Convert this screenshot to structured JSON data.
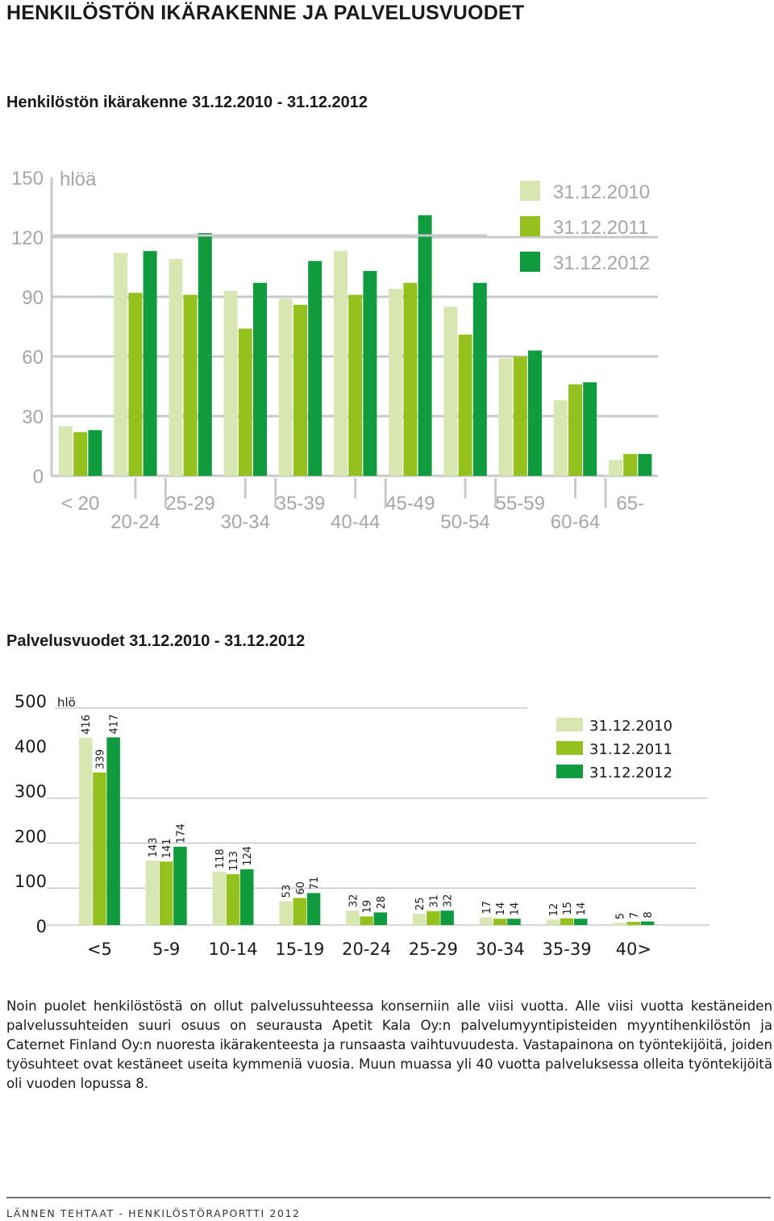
{
  "page": {
    "title": "HENKILÖSTÖN IKÄRAKENNE JA PALVELUSVUODET",
    "footer": "LÄNNEN TEHTAAT - HENKILÖSTÖRAPORTTI 2012",
    "body_text": "Noin puolet henkilöstöstä on ollut palvelussuhteessa konserniin alle viisi vuotta. Alle viisi vuotta kestäneiden palvelussuhteiden suuri osuus on seurausta Apetit Kala Oy:n palvelumyyntipisteiden myyntihenkilöstön ja Caternet Finland Oy:n nuoresta ikärakenteesta ja runsaasta vaihtuvuudesta. Vastapainona on työntekijöitä, joiden työsuhteet ovat kestäneet useita kymmeniä vuosia. Muun muassa yli 40 vuotta palveluksessa olleita työntekijöitä oli vuoden lopussa 8."
  },
  "colors": {
    "s2010": "#d8e6b1",
    "s2011": "#95c11f",
    "s2012": "#119b3f",
    "axis_text": "#a6a6a6",
    "grid": "#c9c9c9"
  },
  "chart_data": [
    {
      "type": "bar",
      "title": "Henkilöstön ikärakenne 31.12.2010 - 31.12.2012",
      "unit_label": "hlöä",
      "categories": [
        "< 20",
        "20-24",
        "25-29",
        "30-34",
        "35-39",
        "40-44",
        "45-49",
        "50-54",
        "55-59",
        "60-64",
        "65-"
      ],
      "series": [
        {
          "name": "31.12.2010",
          "values": [
            25,
            112,
            109,
            93,
            89,
            113,
            94,
            85,
            59,
            38,
            8
          ]
        },
        {
          "name": "31.12.2011",
          "values": [
            22,
            92,
            91,
            74,
            86,
            91,
            97,
            71,
            60,
            46,
            11
          ]
        },
        {
          "name": "31.12.2012",
          "values": [
            23,
            113,
            122,
            97,
            108,
            103,
            131,
            97,
            63,
            47,
            11
          ]
        }
      ],
      "ylim": [
        0,
        150
      ],
      "yticks": [
        0,
        30,
        60,
        90,
        120,
        150
      ],
      "grid": true,
      "legend_position": "top-right"
    },
    {
      "type": "bar",
      "title": "Palvelusvuodet 31.12.2010 - 31.12.2012",
      "unit_label": "hlö",
      "categories": [
        "<5",
        "5-9",
        "10-14",
        "15-19",
        "20-24",
        "25-29",
        "30-34",
        "35-39",
        "40>"
      ],
      "series": [
        {
          "name": "31.12.2010",
          "values": [
            416,
            143,
            118,
            53,
            32,
            25,
            17,
            12,
            5
          ]
        },
        {
          "name": "31.12.2011",
          "values": [
            339,
            141,
            113,
            60,
            19,
            31,
            14,
            15,
            7
          ]
        },
        {
          "name": "31.12.2012",
          "values": [
            417,
            174,
            124,
            71,
            28,
            32,
            14,
            14,
            8
          ]
        }
      ],
      "ylim": [
        0,
        500
      ],
      "yticks": [
        0,
        100,
        200,
        300,
        400,
        500
      ],
      "data_labels": true,
      "grid": true,
      "legend_position": "top-right"
    }
  ]
}
